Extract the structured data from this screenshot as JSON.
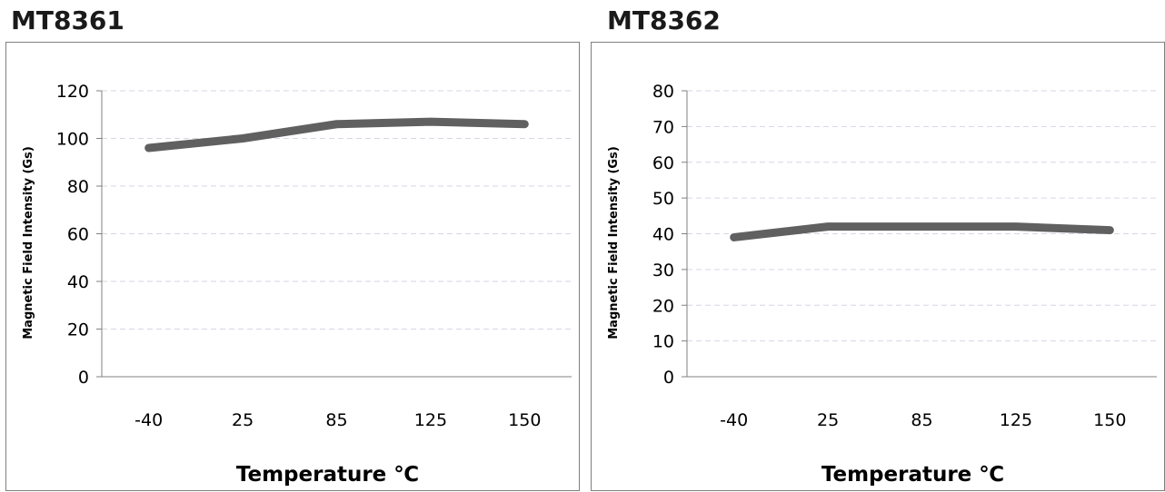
{
  "chart_data": [
    {
      "type": "line",
      "title": "MT8361",
      "categories": [
        "-40",
        "25",
        "85",
        "125",
        "150"
      ],
      "series": [
        {
          "values": [
            96,
            100,
            106,
            107,
            106
          ]
        }
      ],
      "xlabel": "Temperature ℃",
      "ylabel": "Magnetic Field Intensity (Gs)",
      "ylim": [
        0,
        120
      ],
      "yticks": [
        "0",
        "20",
        "40",
        "60",
        "80",
        "100",
        "120"
      ],
      "grid": true,
      "line_color": "#606060"
    },
    {
      "type": "line",
      "title": "MT8362",
      "categories": [
        "-40",
        "25",
        "85",
        "125",
        "150"
      ],
      "series": [
        {
          "values": [
            39,
            42,
            42,
            42,
            41
          ]
        }
      ],
      "xlabel": "Temperature ℃",
      "ylabel": "Magnetic Field Intensity (Gs)",
      "ylim": [
        0,
        80
      ],
      "yticks": [
        "0",
        "10",
        "20",
        "30",
        "40",
        "50",
        "60",
        "70",
        "80"
      ],
      "grid": true,
      "line_color": "#606060"
    }
  ]
}
